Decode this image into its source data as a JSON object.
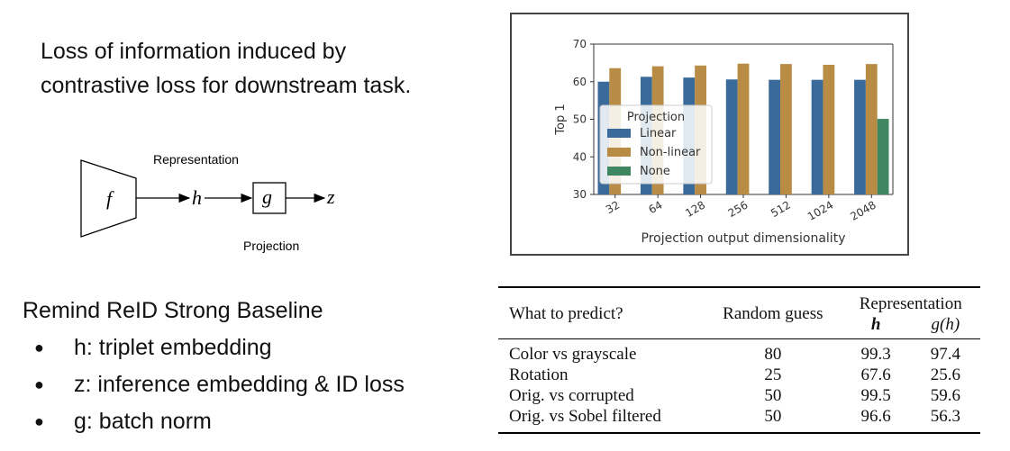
{
  "intro": {
    "line1": "Loss of information induced by",
    "line2": "contrastive loss for downstream task."
  },
  "diagram": {
    "representation_label": "Representation",
    "projection_label": "Projection",
    "f": "f",
    "h": "h",
    "g": "g",
    "z": "z"
  },
  "remind": {
    "title": "Remind ReID Strong Baseline",
    "items": [
      "h: triplet embedding",
      "z: inference embedding & ID loss",
      "g: batch norm"
    ]
  },
  "chart_data": {
    "type": "bar",
    "title": "",
    "xlabel": "Projection output dimensionality",
    "ylabel": "Top 1",
    "ylim": [
      30,
      70
    ],
    "yticks": [
      30,
      40,
      50,
      60,
      70
    ],
    "categories": [
      "32",
      "64",
      "128",
      "256",
      "512",
      "1024",
      "2048"
    ],
    "legend_title": "Projection",
    "legend_position": "center-left",
    "grid": false,
    "series": [
      {
        "name": "Linear",
        "color": "#3a6a99",
        "values": [
          60.0,
          61.3,
          61.1,
          60.6,
          60.5,
          60.5,
          60.5
        ]
      },
      {
        "name": "Non-linear",
        "color": "#b88c44",
        "values": [
          63.6,
          64.1,
          64.3,
          64.8,
          64.7,
          64.5,
          64.7
        ]
      },
      {
        "name": "None",
        "color": "#3e8760",
        "values": [
          null,
          null,
          null,
          null,
          null,
          null,
          50.1
        ]
      }
    ]
  },
  "table": {
    "col_what": "What to predict?",
    "col_random": "Random guess",
    "col_repr": "Representation",
    "col_h": "h",
    "col_gh": "g(h)",
    "rows": [
      {
        "task": "Color vs grayscale",
        "random": "80",
        "h": "99.3",
        "gh": "97.4"
      },
      {
        "task": "Rotation",
        "random": "25",
        "h": "67.6",
        "gh": "25.6"
      },
      {
        "task": "Orig. vs corrupted",
        "random": "50",
        "h": "99.5",
        "gh": "59.6"
      },
      {
        "task": "Orig. vs Sobel filtered",
        "random": "50",
        "h": "96.6",
        "gh": "56.3"
      }
    ]
  }
}
